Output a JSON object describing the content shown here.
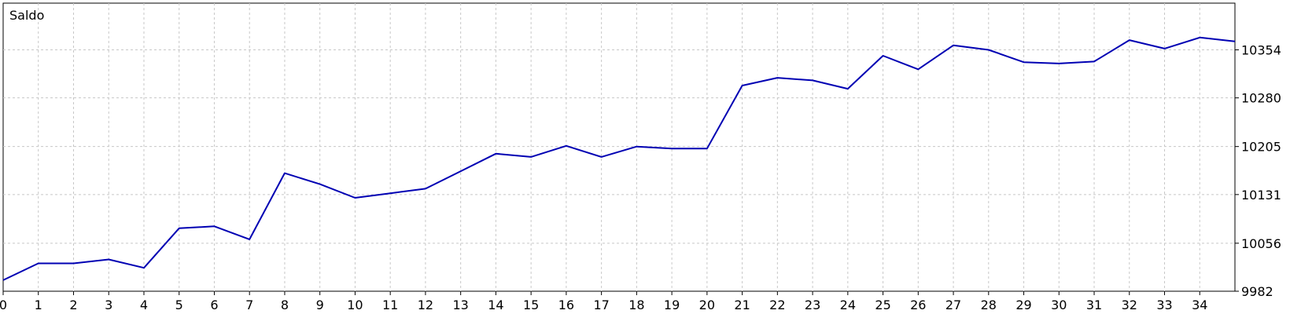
{
  "chart_data": {
    "type": "line",
    "title": "Saldo",
    "xlabel": "",
    "ylabel": "",
    "x_ticks": [
      "0",
      "1",
      "2",
      "3",
      "4",
      "5",
      "6",
      "7",
      "8",
      "9",
      "10",
      "11",
      "12",
      "13",
      "14",
      "15",
      "16",
      "17",
      "18",
      "19",
      "20",
      "21",
      "22",
      "23",
      "24",
      "25",
      "26",
      "27",
      "28",
      "29",
      "30",
      "31",
      "32",
      "33",
      "34"
    ],
    "y_ticks": [
      "9982",
      "10056",
      "10131",
      "10205",
      "10280",
      "10354"
    ],
    "xlim": [
      0,
      35
    ],
    "ylim": [
      9982,
      10426
    ],
    "grid": true,
    "series": [
      {
        "color": "#0000b3",
        "x": [
          0,
          1,
          2,
          3,
          4,
          5,
          6,
          7,
          8,
          9,
          10,
          11,
          12,
          13,
          14,
          15,
          16,
          17,
          18,
          19,
          20,
          21,
          22,
          23,
          24,
          25,
          26,
          27,
          28,
          29,
          30,
          31,
          32,
          33,
          34,
          35
        ],
        "values": [
          9999,
          10025,
          10025,
          10031,
          10018,
          10079,
          10082,
          10062,
          10164,
          10147,
          10126,
          10133,
          10140,
          10167,
          10194,
          10189,
          10206,
          10189,
          10205,
          10202,
          10202,
          10299,
          10311,
          10307,
          10294,
          10345,
          10324,
          10361,
          10354,
          10335,
          10333,
          10336,
          10369,
          10356,
          10373,
          10367
        ]
      }
    ]
  }
}
